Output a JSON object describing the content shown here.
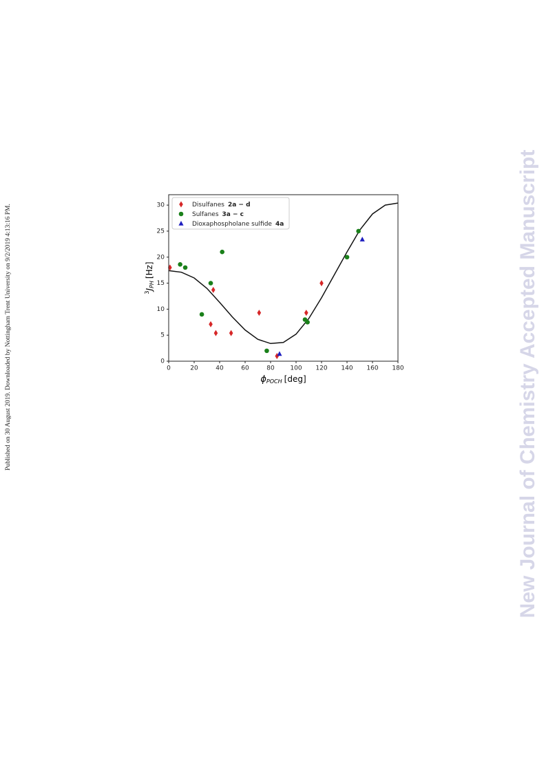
{
  "side_note": "Published on 30 August 2019. Downloaded by Nottingham Trent University on 9/2/2019 4:13:16 PM.",
  "watermark": "New Journal of Chemistry Accepted Manuscript",
  "chart_data": {
    "type": "scatter",
    "xlabel": {
      "symbol": "ϕ",
      "sub": "POCH",
      "unit": "[deg]"
    },
    "ylabel": {
      "sup": "3",
      "symbol": "J",
      "sub": "PH",
      "unit": "[Hz]"
    },
    "xlim": [
      0,
      180
    ],
    "ylim": [
      0,
      32
    ],
    "xticks": [
      0,
      20,
      40,
      60,
      80,
      100,
      120,
      140,
      160,
      180
    ],
    "yticks": [
      0,
      5,
      10,
      15,
      20,
      25,
      30
    ],
    "legend": "upper left",
    "series": [
      {
        "name": "Disulfanes",
        "compound": "2a − d",
        "color": "#d62728",
        "marker": "diamond",
        "x": [
          1,
          33,
          35,
          37,
          49,
          71,
          85,
          108,
          120
        ],
        "values": [
          18,
          7.1,
          13.7,
          5.4,
          5.4,
          9.3,
          1,
          9.3,
          15
        ]
      },
      {
        "name": "Sulfanes",
        "compound": "3a − c",
        "color": "#1a801a",
        "marker": "circle",
        "x": [
          9,
          13,
          26,
          33,
          42,
          77,
          107,
          109,
          140,
          149
        ],
        "values": [
          18.6,
          18,
          9,
          15,
          21,
          2,
          8,
          7.5,
          20,
          25
        ]
      },
      {
        "name": "Dioxaphospholane sulfide",
        "compound": "4a",
        "color": "#1f1fbf",
        "marker": "triangle",
        "x": [
          87,
          152
        ],
        "values": [
          1.4,
          23.4
        ]
      }
    ],
    "curve": {
      "color": "#111111",
      "x": [
        0,
        10,
        20,
        30,
        40,
        50,
        60,
        70,
        80,
        90,
        100,
        110,
        120,
        130,
        140,
        150,
        160,
        170,
        180
      ],
      "values": [
        17.4,
        17.1,
        16,
        14,
        11.3,
        8.5,
        6,
        4.2,
        3.4,
        3.6,
        5.2,
        8.2,
        12.2,
        16.6,
        21,
        25.2,
        28.3,
        30,
        30.4
      ]
    }
  }
}
